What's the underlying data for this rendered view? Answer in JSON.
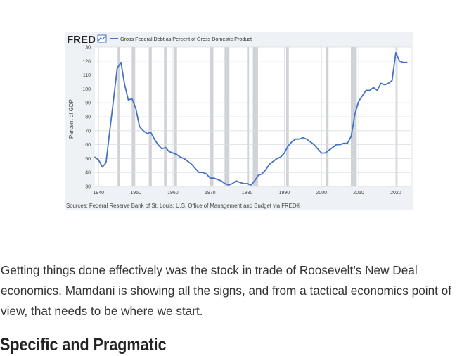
{
  "chart": {
    "brand": "FRED",
    "legend_label": "Gross Federal Debt as Percent of Gross Domestic Product",
    "ylabel": "Percent of GDP",
    "source": "Sources: Federal Reserve Bank of St. Louis; U.S. Office of Management and Budget via FRED®"
  },
  "chart_data": {
    "type": "line",
    "title": "",
    "xlabel": "",
    "ylabel": "Percent of GDP",
    "xlim": [
      1939,
      2024
    ],
    "ylim": [
      30,
      130
    ],
    "x_ticks": [
      1940,
      1950,
      1960,
      1970,
      1980,
      1990,
      2000,
      2010,
      2020
    ],
    "y_ticks": [
      30,
      40,
      50,
      60,
      70,
      80,
      90,
      100,
      110,
      120,
      130
    ],
    "grid": true,
    "legend": "top-left",
    "line_color": "#4572c4",
    "recession_color": "#cfd3d8",
    "recessions": [
      [
        1945.1,
        1945.8
      ],
      [
        1948.9,
        1949.8
      ],
      [
        1953.5,
        1954.3
      ],
      [
        1957.6,
        1958.3
      ],
      [
        1960.3,
        1961.1
      ],
      [
        1969.9,
        1970.9
      ],
      [
        1973.9,
        1975.2
      ],
      [
        1980.0,
        1980.5
      ],
      [
        1981.5,
        1982.9
      ],
      [
        1990.5,
        1991.2
      ],
      [
        2001.2,
        2001.9
      ],
      [
        2007.9,
        2009.5
      ],
      [
        2020.1,
        2020.4
      ]
    ],
    "series": [
      {
        "name": "Gross Federal Debt as Percent of Gross Domestic Product",
        "x": [
          1939,
          1940,
          1941,
          1942,
          1943,
          1944,
          1945,
          1946,
          1947,
          1948,
          1949,
          1950,
          1951,
          1952,
          1953,
          1954,
          1955,
          1956,
          1957,
          1958,
          1959,
          1960,
          1961,
          1962,
          1963,
          1964,
          1965,
          1966,
          1967,
          1968,
          1969,
          1970,
          1971,
          1972,
          1973,
          1974,
          1975,
          1976,
          1977,
          1978,
          1979,
          1980,
          1981,
          1982,
          1983,
          1984,
          1985,
          1986,
          1987,
          1988,
          1989,
          1990,
          1991,
          1992,
          1993,
          1994,
          1995,
          1996,
          1997,
          1998,
          1999,
          2000,
          2001,
          2002,
          2003,
          2004,
          2005,
          2006,
          2007,
          2008,
          2009,
          2010,
          2011,
          2012,
          2013,
          2014,
          2015,
          2016,
          2017,
          2018,
          2019,
          2020,
          2021,
          2022,
          2023
        ],
        "values": [
          51,
          49,
          44,
          47,
          70,
          92,
          115,
          119,
          103,
          92,
          93,
          86,
          73,
          70,
          68,
          69,
          64,
          60,
          57,
          58,
          55,
          54,
          53,
          51,
          50,
          48,
          46,
          43,
          40,
          40,
          39,
          36,
          36,
          35,
          34,
          32,
          31,
          32,
          34,
          33,
          32,
          32,
          31,
          34,
          38,
          39,
          42,
          46,
          48,
          50,
          51,
          54,
          59,
          62,
          64,
          64,
          65,
          64,
          62,
          60,
          57,
          54,
          54,
          56,
          58,
          60,
          60,
          61,
          61,
          66,
          82,
          91,
          95,
          99,
          99,
          101,
          99,
          104,
          103,
          104,
          106,
          126,
          120,
          119,
          119
        ]
      }
    ]
  },
  "article": {
    "paragraph": "Getting things done effectively was the stock in trade of Roosevelt’s New Deal economics. Mamdani is showing all the signs, and from a tactical economics point of view, that needs to be where we start.",
    "heading": "Specific and Pragmatic"
  }
}
